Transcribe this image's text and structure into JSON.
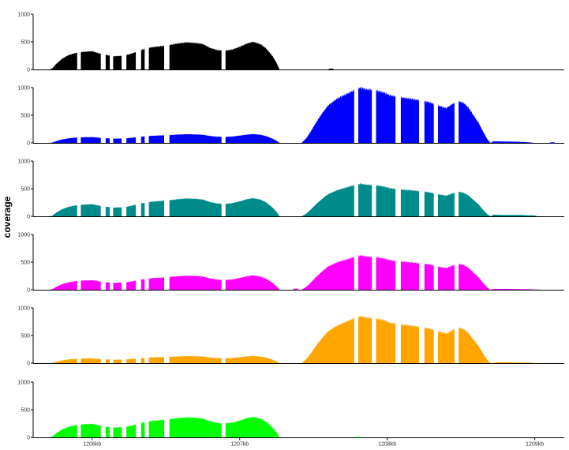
{
  "chart_data": {
    "type": "area",
    "ylabel": "coverage",
    "xlabel": "",
    "title": "",
    "grid": false,
    "legend": "none",
    "x_unit": "kb",
    "xlim": [
      1205.6,
      1209.2
    ],
    "ylim": [
      0,
      1000
    ],
    "y_ticks": [
      0,
      500,
      1000
    ],
    "y_tick_labels": [
      "0",
      "500",
      "1000"
    ],
    "x_ticks": [
      1206,
      1207,
      1208,
      1209
    ],
    "x_tick_labels": [
      "1206kb",
      "1207kb",
      "1208kb",
      "1209kb"
    ],
    "panel_colors": [
      "#000000",
      "#0000ff",
      "#008b8b",
      "#ff00ff",
      "#ffa500",
      "#00ff00"
    ],
    "shared_profile_a": [
      [
        1205.71,
        0
      ],
      [
        1205.73,
        20
      ],
      [
        1205.76,
        110
      ],
      [
        1205.8,
        200
      ],
      [
        1205.84,
        260
      ],
      [
        1205.89,
        300
      ],
      [
        1205.94,
        320
      ],
      [
        1206.0,
        330
      ],
      [
        1206.05,
        290
      ],
      [
        1206.1,
        260
      ],
      [
        1206.15,
        240
      ],
      [
        1206.22,
        250
      ],
      [
        1206.28,
        300
      ],
      [
        1206.34,
        360
      ],
      [
        1206.4,
        400
      ],
      [
        1206.46,
        420
      ],
      [
        1206.52,
        440
      ],
      [
        1206.58,
        470
      ],
      [
        1206.64,
        490
      ],
      [
        1206.7,
        480
      ],
      [
        1206.75,
        460
      ],
      [
        1206.8,
        390
      ],
      [
        1206.85,
        350
      ],
      [
        1206.9,
        340
      ],
      [
        1206.95,
        360
      ],
      [
        1207.0,
        410
      ],
      [
        1207.05,
        470
      ],
      [
        1207.09,
        500
      ],
      [
        1207.14,
        460
      ],
      [
        1207.18,
        380
      ],
      [
        1207.22,
        250
      ],
      [
        1207.25,
        120
      ],
      [
        1207.27,
        0
      ]
    ],
    "shared_profile_b": [
      [
        1207.42,
        0
      ],
      [
        1207.45,
        80
      ],
      [
        1207.48,
        200
      ],
      [
        1207.52,
        380
      ],
      [
        1207.56,
        540
      ],
      [
        1207.6,
        680
      ],
      [
        1207.66,
        800
      ],
      [
        1207.72,
        880
      ],
      [
        1207.78,
        960
      ],
      [
        1207.82,
        1000
      ],
      [
        1207.86,
        970
      ],
      [
        1207.9,
        960
      ],
      [
        1207.94,
        940
      ],
      [
        1207.98,
        910
      ],
      [
        1208.02,
        860
      ],
      [
        1208.06,
        840
      ],
      [
        1208.1,
        820
      ],
      [
        1208.16,
        800
      ],
      [
        1208.22,
        770
      ],
      [
        1208.28,
        740
      ],
      [
        1208.34,
        680
      ],
      [
        1208.4,
        630
      ],
      [
        1208.44,
        700
      ],
      [
        1208.48,
        760
      ],
      [
        1208.52,
        720
      ],
      [
        1208.55,
        640
      ],
      [
        1208.58,
        520
      ],
      [
        1208.62,
        360
      ],
      [
        1208.65,
        200
      ],
      [
        1208.68,
        60
      ],
      [
        1208.7,
        0
      ]
    ],
    "series": [
      {
        "color": "#000000",
        "gaps": [
          [
            1205.9,
            1205.92
          ],
          [
            1206.06,
            1206.09
          ],
          [
            1206.12,
            1206.14
          ],
          [
            1206.2,
            1206.23
          ],
          [
            1206.3,
            1206.33
          ],
          [
            1206.36,
            1206.38
          ],
          [
            1206.49,
            1206.52
          ],
          [
            1206.88,
            1206.9
          ]
        ],
        "peak_a": 500,
        "peak_b": 0,
        "tail": [],
        "specks": [
          [
            1207.62,
            15
          ]
        ]
      },
      {
        "color": "#0000ff",
        "gaps": [
          [
            1205.9,
            1205.92
          ],
          [
            1206.06,
            1206.09
          ],
          [
            1206.12,
            1206.14
          ],
          [
            1206.2,
            1206.23
          ],
          [
            1206.3,
            1206.33
          ],
          [
            1206.36,
            1206.38
          ],
          [
            1206.49,
            1206.52
          ],
          [
            1206.88,
            1206.9
          ],
          [
            1207.78,
            1207.8
          ],
          [
            1207.9,
            1207.92
          ],
          [
            1208.06,
            1208.09
          ],
          [
            1208.22,
            1208.25
          ],
          [
            1208.32,
            1208.34
          ],
          [
            1208.46,
            1208.48
          ]
        ],
        "peak_a": 160,
        "peak_b": 1000,
        "tail": [
          [
            1208.7,
            0
          ],
          [
            1208.72,
            30
          ],
          [
            1208.8,
            25
          ],
          [
            1208.9,
            20
          ],
          [
            1208.96,
            10
          ],
          [
            1209.0,
            0
          ]
        ],
        "specks": [
          [
            1209.12,
            10
          ]
        ]
      },
      {
        "color": "#008b8b",
        "gaps": [
          [
            1205.9,
            1205.92
          ],
          [
            1206.06,
            1206.09
          ],
          [
            1206.12,
            1206.14
          ],
          [
            1206.2,
            1206.23
          ],
          [
            1206.3,
            1206.33
          ],
          [
            1206.36,
            1206.38
          ],
          [
            1206.49,
            1206.52
          ],
          [
            1206.88,
            1206.9
          ],
          [
            1207.78,
            1207.8
          ],
          [
            1207.9,
            1207.92
          ],
          [
            1208.06,
            1208.09
          ],
          [
            1208.22,
            1208.25
          ],
          [
            1208.32,
            1208.34
          ],
          [
            1208.46,
            1208.48
          ]
        ],
        "peak_a": 330,
        "peak_b": 590,
        "tail": [
          [
            1208.7,
            0
          ],
          [
            1208.72,
            30
          ],
          [
            1208.8,
            25
          ],
          [
            1208.9,
            25
          ],
          [
            1209.0,
            15
          ],
          [
            1209.02,
            0
          ]
        ],
        "specks": []
      },
      {
        "color": "#ff00ff",
        "gaps": [
          [
            1205.9,
            1205.92
          ],
          [
            1206.06,
            1206.09
          ],
          [
            1206.12,
            1206.14
          ],
          [
            1206.2,
            1206.23
          ],
          [
            1206.3,
            1206.33
          ],
          [
            1206.36,
            1206.38
          ],
          [
            1206.49,
            1206.52
          ],
          [
            1206.88,
            1206.9
          ],
          [
            1207.78,
            1207.8
          ],
          [
            1207.9,
            1207.92
          ],
          [
            1208.06,
            1208.09
          ],
          [
            1208.22,
            1208.25
          ],
          [
            1208.32,
            1208.34
          ],
          [
            1208.46,
            1208.48
          ]
        ],
        "peak_a": 260,
        "peak_b": 620,
        "tail": [
          [
            1208.7,
            0
          ],
          [
            1208.72,
            15
          ],
          [
            1208.8,
            15
          ],
          [
            1208.95,
            10
          ],
          [
            1209.04,
            0
          ]
        ],
        "specks": [
          [
            1207.38,
            20
          ]
        ]
      },
      {
        "color": "#ffa500",
        "gaps": [
          [
            1205.9,
            1205.92
          ],
          [
            1206.06,
            1206.09
          ],
          [
            1206.12,
            1206.14
          ],
          [
            1206.2,
            1206.23
          ],
          [
            1206.3,
            1206.33
          ],
          [
            1206.36,
            1206.38
          ],
          [
            1206.49,
            1206.52
          ],
          [
            1206.88,
            1206.9
          ],
          [
            1207.78,
            1207.8
          ],
          [
            1207.9,
            1207.92
          ],
          [
            1208.06,
            1208.09
          ],
          [
            1208.22,
            1208.25
          ],
          [
            1208.32,
            1208.34
          ],
          [
            1208.46,
            1208.48
          ]
        ],
        "peak_a": 130,
        "peak_b": 850,
        "tail": [
          [
            1208.72,
            0
          ],
          [
            1208.73,
            15
          ],
          [
            1208.85,
            15
          ],
          [
            1208.98,
            10
          ],
          [
            1208.99,
            0
          ]
        ],
        "specks": []
      },
      {
        "color": "#00ff00",
        "gaps": [
          [
            1205.9,
            1205.92
          ],
          [
            1206.06,
            1206.09
          ],
          [
            1206.12,
            1206.14
          ],
          [
            1206.2,
            1206.23
          ],
          [
            1206.3,
            1206.33
          ],
          [
            1206.36,
            1206.38
          ],
          [
            1206.49,
            1206.52
          ],
          [
            1206.88,
            1206.9
          ]
        ],
        "peak_a": 370,
        "peak_b": 0,
        "tail": [],
        "specks": [
          [
            1207.8,
            10
          ]
        ]
      }
    ]
  }
}
